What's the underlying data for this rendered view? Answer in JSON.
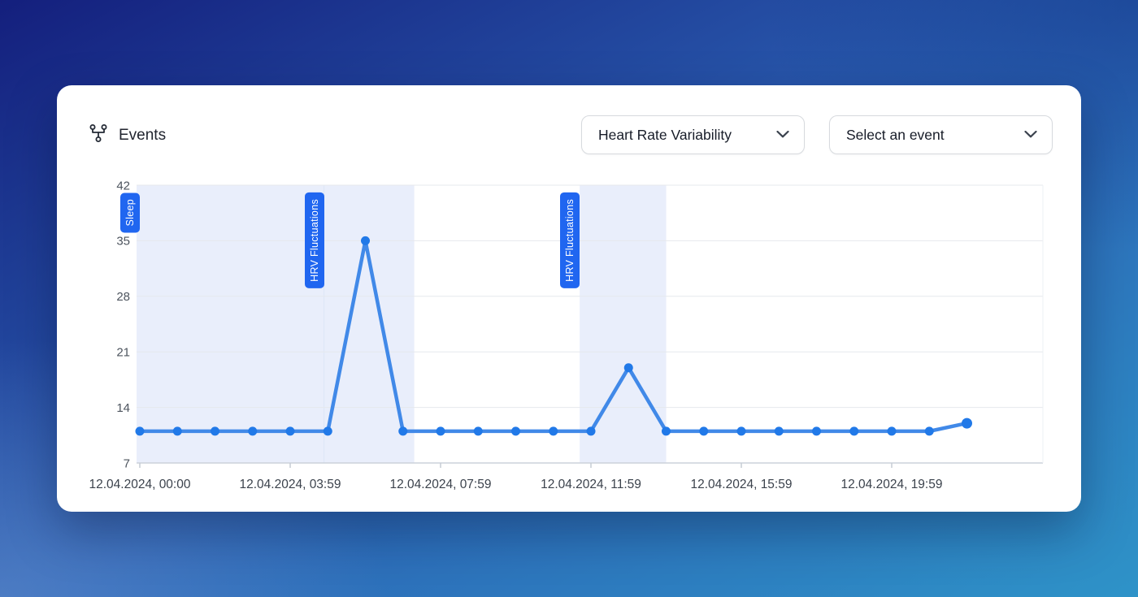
{
  "header": {
    "title": "Events"
  },
  "controls": {
    "metric_dropdown": {
      "value": "Heart Rate Variability"
    },
    "event_dropdown": {
      "value": "Select an event"
    }
  },
  "chart_data": {
    "type": "line",
    "title": "",
    "xlabel": "",
    "ylabel": "",
    "grid": true,
    "legend": false,
    "x_axis": {
      "tick_hours": [
        0,
        4,
        8,
        12,
        16,
        20
      ],
      "tick_labels": [
        "12.04.2024, 00:00",
        "12.04.2024, 03:59",
        "12.04.2024, 07:59",
        "12.04.2024, 11:59",
        "12.04.2024, 15:59",
        "12.04.2024, 19:59"
      ]
    },
    "y_axis": {
      "ticks": [
        42,
        35,
        28,
        21,
        14,
        7
      ],
      "range": [
        7,
        42
      ]
    },
    "series": [
      {
        "name": "Heart Rate Variability",
        "hours": [
          0,
          1,
          2,
          3,
          4,
          5,
          6,
          7,
          8,
          9,
          10,
          11,
          12,
          13,
          14,
          15,
          16,
          17,
          18,
          19,
          20,
          21,
          22
        ],
        "values": [
          11,
          11,
          11,
          11,
          11,
          11,
          35,
          11,
          11,
          11,
          11,
          11,
          11,
          19,
          11,
          11,
          11,
          11,
          11,
          11,
          11,
          11,
          12
        ]
      }
    ],
    "regions": [
      {
        "label": "Sleep",
        "start_hour": 0,
        "end_hour": 4.9
      },
      {
        "label": "HRV Fluctuations",
        "start_hour": 4.9,
        "end_hour": 7.3
      },
      {
        "label": "HRV Fluctuations",
        "start_hour": 11.7,
        "end_hour": 14.0
      }
    ],
    "colors": {
      "line": "#4189e8",
      "dot": "#2179e8",
      "region_fill": "#e9eefb",
      "region_boundary": "#dde6f7",
      "badge_bg": "#2066f0",
      "badge_text": "#ffffff",
      "gridline": "#e6e8ed",
      "axis_line": "#ccd2da",
      "tick": "#c6ccd4",
      "y_label": "#4d545e",
      "x_label": "#3b424c"
    }
  }
}
